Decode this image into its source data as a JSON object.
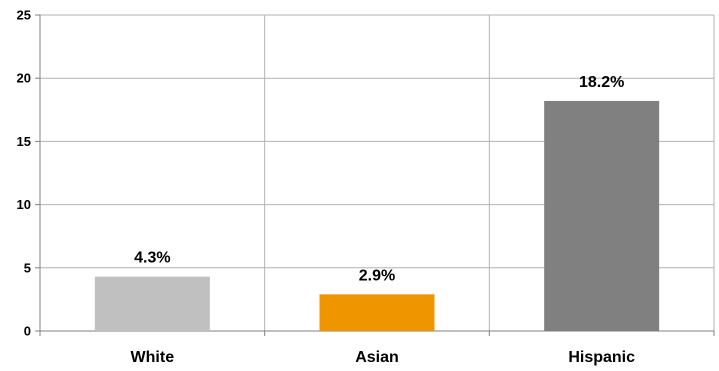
{
  "chart_data": {
    "type": "bar",
    "categories": [
      "White",
      "Asian",
      "Hispanic"
    ],
    "values": [
      4.3,
      2.9,
      18.2
    ],
    "data_labels": [
      "4.3%",
      "2.9%",
      "18.2%"
    ],
    "bar_colors": [
      "#c0c0c0",
      "#ee9500",
      "#808080"
    ],
    "yticks": [
      0,
      5,
      10,
      15,
      20,
      25
    ],
    "ylim": [
      0,
      25
    ],
    "title": "",
    "xlabel": "",
    "ylabel": "",
    "grid": true,
    "legend": "none"
  }
}
